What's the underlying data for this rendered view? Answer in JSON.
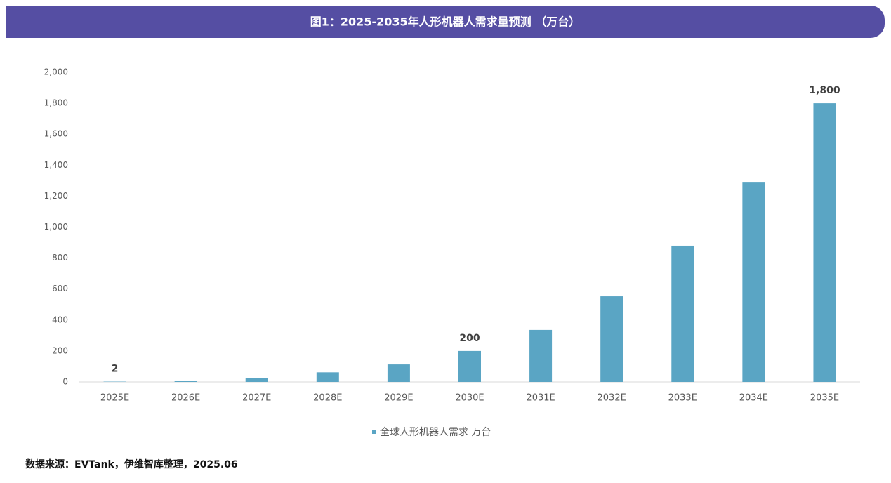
{
  "chart_data": {
    "type": "bar",
    "title": "图1：2025-2035年人形机器人需求量预测 （万台）",
    "categories": [
      "2025E",
      "2026E",
      "2027E",
      "2028E",
      "2029E",
      "2030E",
      "2031E",
      "2032E",
      "2033E",
      "2034E",
      "2035E"
    ],
    "series": [
      {
        "name": "全球人形机器人需求 万台",
        "color": "#5aa5c4",
        "values": [
          2,
          8,
          27,
          62,
          113,
          200,
          336,
          553,
          880,
          1292,
          1800
        ],
        "value_labels": [
          "2",
          null,
          null,
          null,
          null,
          "200",
          null,
          null,
          null,
          null,
          "1,800"
        ]
      }
    ],
    "ylim": [
      0,
      2000
    ],
    "yticks": [
      0,
      200,
      400,
      600,
      800,
      {
        "value": 1000,
        "label": "1,000"
      },
      {
        "value": 1200,
        "label": "1,200"
      },
      {
        "value": 1400,
        "label": "1,400"
      },
      {
        "value": 1600,
        "label": "1,600"
      },
      {
        "value": 1800,
        "label": "1,800"
      },
      {
        "value": 2000,
        "label": "2,000"
      }
    ],
    "grid": false,
    "legend": "bottom",
    "source": "数据来源：EVTank，伊维智库整理，2025.06"
  }
}
